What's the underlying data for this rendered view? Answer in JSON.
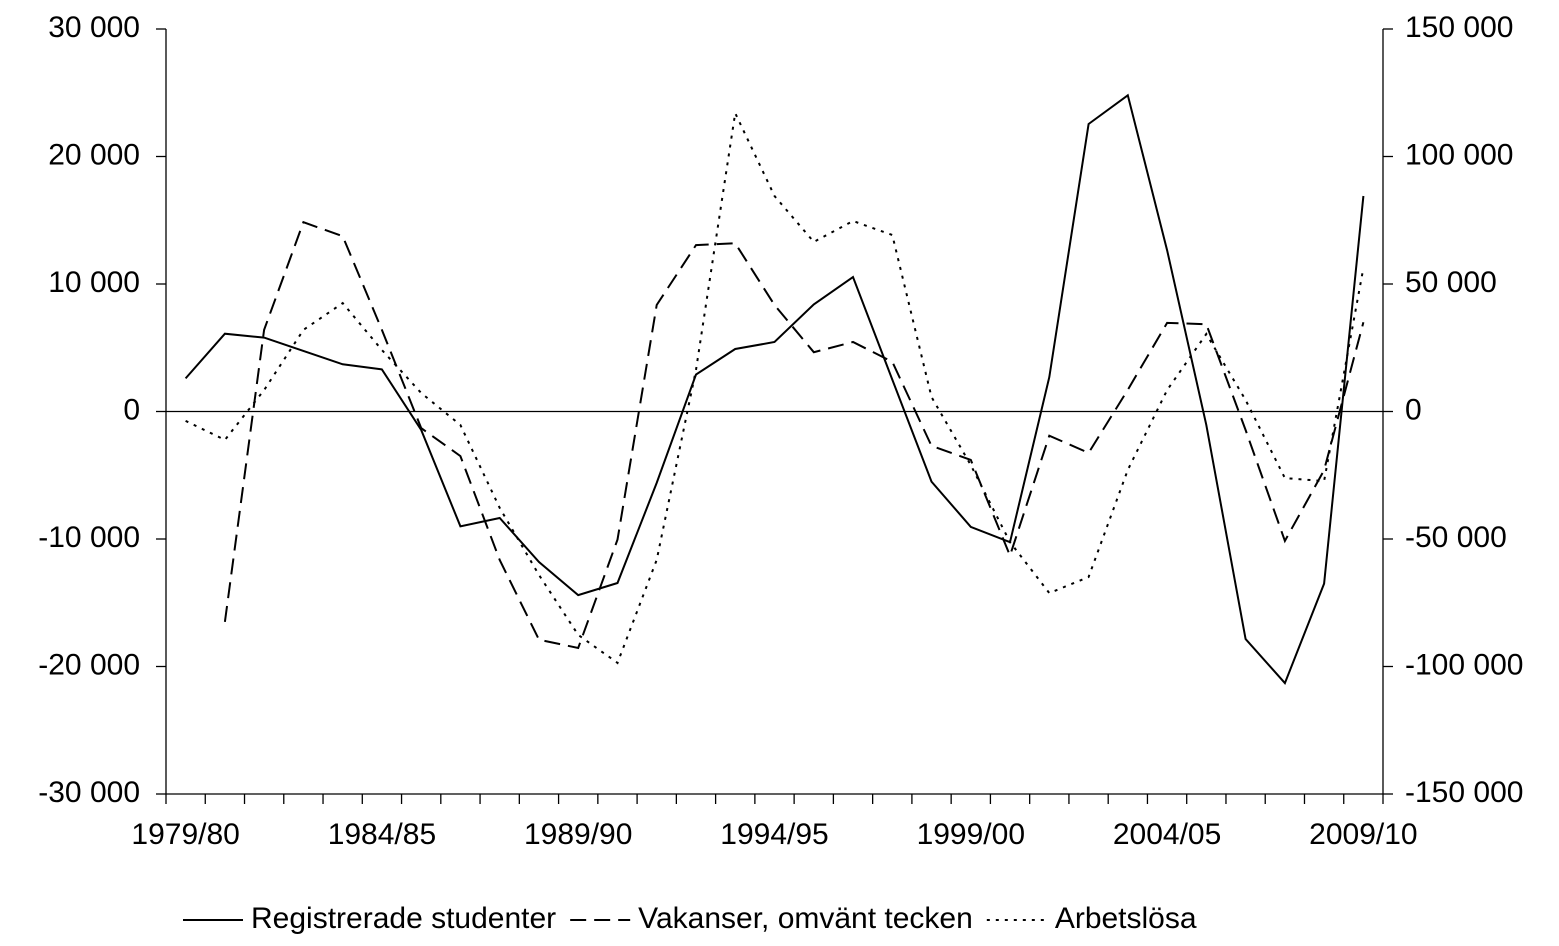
{
  "chart_data": {
    "type": "line",
    "categories": [
      "1979/80",
      null,
      null,
      null,
      null,
      "1984/85",
      null,
      null,
      null,
      null,
      "1989/90",
      null,
      null,
      null,
      null,
      "1994/95",
      null,
      null,
      null,
      null,
      "1999/00",
      null,
      null,
      null,
      null,
      "2004/05",
      null,
      null,
      null,
      null,
      "2009/10"
    ],
    "series": [
      {
        "name": "Registrerade studenter",
        "color": "#000000",
        "dash": "solid",
        "values": [
          2600,
          6100,
          5800,
          4750,
          3700,
          3300,
          -1450,
          -9000,
          -8350,
          -11800,
          -14400,
          -13450,
          -5600,
          2900,
          4900,
          5450,
          8400,
          10550,
          2500,
          -5500,
          -9050,
          -10250,
          2700,
          22550,
          24800,
          12650,
          -1050,
          -17850,
          -21300,
          -13500,
          16900
        ]
      },
      {
        "name": "Vakanser, omvänt tecken",
        "color": "#000000",
        "dash": "dashed",
        "values": [
          null,
          -16500,
          6400,
          14850,
          13750,
          6400,
          -1300,
          -3500,
          -11650,
          -17900,
          -18550,
          -10050,
          8350,
          13050,
          13200,
          8350,
          4650,
          5450,
          3900,
          -2700,
          -3800,
          -11300,
          -1900,
          -3250,
          1700,
          6950,
          6850,
          -1450,
          -10150,
          -4600,
          7000
        ]
      },
      {
        "name": "Arbetslösa",
        "color": "#000000",
        "dash": "dotted",
        "axis": "y2",
        "values": [
          -3700,
          -11150,
          8400,
          32000,
          42500,
          24100,
          7250,
          -5300,
          -37800,
          -64100,
          -87600,
          -98600,
          -58200,
          16300,
          117000,
          84500,
          66500,
          74700,
          69200,
          5700,
          -21000,
          -51200,
          -71200,
          -64900,
          -22900,
          8400,
          30400,
          4500,
          -26100,
          -27300,
          56300
        ]
      }
    ],
    "ylim": [
      -30000,
      30000
    ],
    "yticks": [
      {
        "value": -30000,
        "label": "-30 000"
      },
      {
        "value": -20000,
        "label": "-20 000"
      },
      {
        "value": -10000,
        "label": "-10 000"
      },
      0,
      {
        "value": 10000,
        "label": "10 000"
      },
      {
        "value": 20000,
        "label": "20 000"
      },
      {
        "value": 30000,
        "label": "30 000"
      }
    ],
    "y2lim": [
      -150000,
      150000
    ],
    "y2ticks": [
      {
        "value": -150000,
        "label": "-150 000"
      },
      {
        "value": -100000,
        "label": "-100 000"
      },
      {
        "value": -50000,
        "label": "-50 000"
      },
      0,
      {
        "value": 50000,
        "label": "50 000"
      },
      {
        "value": 100000,
        "label": "100 000"
      },
      {
        "value": 150000,
        "label": "150 000"
      }
    ],
    "grid": false,
    "legend": "bottom"
  }
}
